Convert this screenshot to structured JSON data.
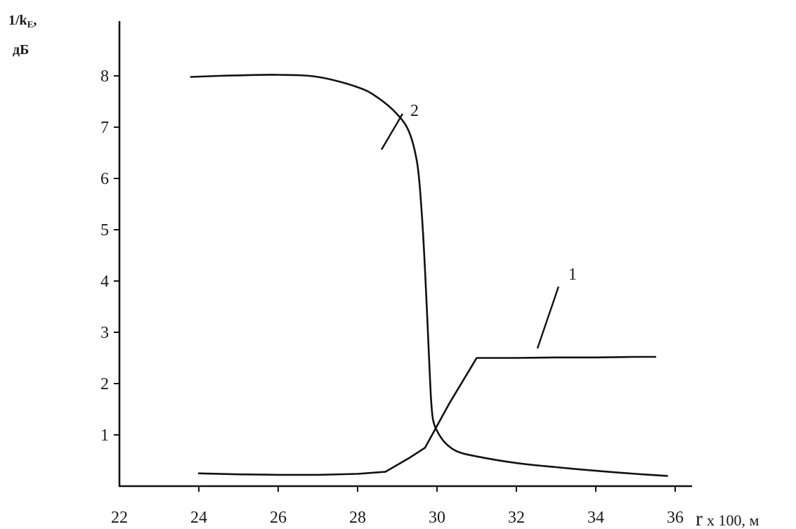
{
  "chart_data": {
    "type": "line",
    "ylabel_line1": "1/k",
    "ylabel_sub": "E",
    "ylabel_line1_suffix": ",",
    "ylabel_line2": "дБ",
    "xlabel_symbol": "r",
    "xlabel_rest": "x 100, м",
    "xlim": [
      22,
      37
    ],
    "ylim": [
      0,
      9
    ],
    "x_ticks": [
      "22",
      "24",
      "26",
      "28",
      "30",
      "32",
      "34",
      "36"
    ],
    "y_ticks": [
      "1",
      "2",
      "3",
      "4",
      "5",
      "6",
      "7",
      "8"
    ],
    "grid": false,
    "series": [
      {
        "label": "1",
        "x": [
          24.0,
          25.0,
          26.0,
          27.0,
          28.0,
          28.7,
          29.3,
          29.7,
          30.3,
          31.0,
          32.0,
          33.0,
          34.0,
          35.0,
          35.5
        ],
        "y": [
          0.25,
          0.23,
          0.22,
          0.22,
          0.24,
          0.28,
          0.55,
          0.75,
          1.6,
          2.5,
          2.5,
          2.51,
          2.51,
          2.52,
          2.52
        ]
      },
      {
        "label": "2",
        "x": [
          23.8,
          24.5,
          25.0,
          26.0,
          27.0,
          28.0,
          28.5,
          29.0,
          29.3,
          29.5,
          29.6,
          29.7,
          29.8,
          29.85,
          29.9,
          30.0,
          30.2,
          30.5,
          31.0,
          32.0,
          33.0,
          34.0,
          35.0,
          35.8
        ],
        "y": [
          7.98,
          8.0,
          8.01,
          8.02,
          7.98,
          7.78,
          7.58,
          7.25,
          6.9,
          6.3,
          5.5,
          4.2,
          2.5,
          1.7,
          1.3,
          1.08,
          0.85,
          0.68,
          0.58,
          0.45,
          0.37,
          0.3,
          0.24,
          0.2
        ]
      }
    ],
    "annotations": [
      {
        "text": "1",
        "series": "1"
      },
      {
        "text": "2",
        "series": "2"
      }
    ]
  }
}
